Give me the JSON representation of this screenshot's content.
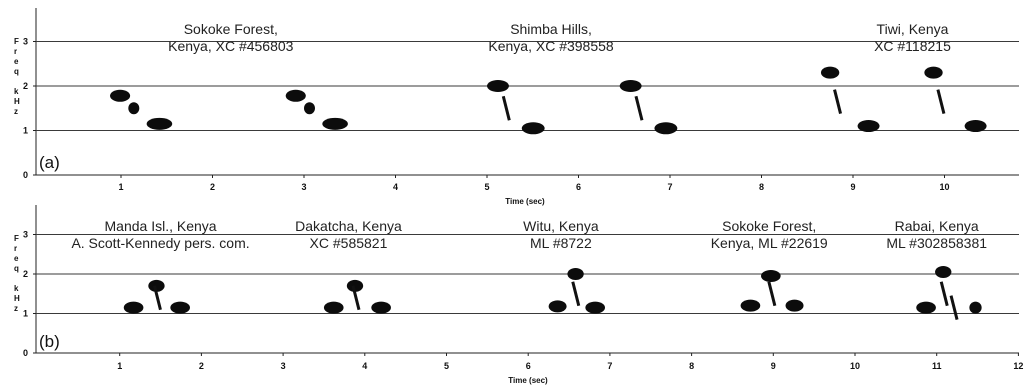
{
  "chart_data": [
    {
      "type": "spectrogram",
      "panel_label": "(a)",
      "xlabel": "Time (sec)",
      "ylabel_letters": [
        "F",
        "r",
        "e",
        "q",
        "",
        "k",
        "H",
        "z"
      ],
      "xlim": [
        0.3,
        11.0
      ],
      "ylim": [
        0,
        3.6
      ],
      "x_ticks": [
        "1",
        "2",
        "3",
        "4",
        "5",
        "6",
        "7",
        "8",
        "9",
        "10"
      ],
      "y_ticks": [
        "0",
        "1",
        "2",
        "3"
      ],
      "grid_y": [
        1,
        2,
        3
      ],
      "recordings": [
        {
          "label_lines": [
            "Sokoke Forest,",
            "Kenya, XC #456803"
          ],
          "label_center_x": 2.2,
          "notes": [
            {
              "t": 0.88,
              "f": 1.78,
              "d": 0.22
            },
            {
              "t": 1.08,
              "f": 1.5,
              "d": 0.12
            },
            {
              "t": 1.28,
              "f": 1.15,
              "d": 0.28
            },
            {
              "t": 2.8,
              "f": 1.78,
              "d": 0.22
            },
            {
              "t": 3.0,
              "f": 1.5,
              "d": 0.12
            },
            {
              "t": 3.2,
              "f": 1.15,
              "d": 0.28
            }
          ]
        },
        {
          "label_lines": [
            "Shimba Hills,",
            "Kenya, XC #398558"
          ],
          "label_center_x": 5.7,
          "notes": [
            {
              "t": 5.0,
              "f": 2.0,
              "d": 0.24
            },
            {
              "t": 5.2,
              "f": 1.5,
              "d": 0.1
            },
            {
              "t": 5.38,
              "f": 1.05,
              "d": 0.25
            },
            {
              "t": 6.45,
              "f": 2.0,
              "d": 0.24
            },
            {
              "t": 6.65,
              "f": 1.5,
              "d": 0.1
            },
            {
              "t": 6.83,
              "f": 1.05,
              "d": 0.25
            }
          ]
        },
        {
          "label_lines": [
            "Tiwi, Kenya",
            "XC #118215"
          ],
          "label_center_x": 9.65,
          "notes": [
            {
              "t": 8.65,
              "f": 2.3,
              "d": 0.2
            },
            {
              "t": 8.82,
              "f": 1.65,
              "d": 0.08
            },
            {
              "t": 9.05,
              "f": 1.1,
              "d": 0.24
            },
            {
              "t": 9.78,
              "f": 2.3,
              "d": 0.2
            },
            {
              "t": 9.95,
              "f": 1.65,
              "d": 0.08
            },
            {
              "t": 10.22,
              "f": 1.1,
              "d": 0.24
            }
          ]
        }
      ]
    },
    {
      "type": "spectrogram",
      "panel_label": "(b)",
      "xlabel": "Time (sec)",
      "ylabel_letters": [
        "F",
        "r",
        "e",
        "q",
        "",
        "k",
        "H",
        "z"
      ],
      "xlim": [
        0.05,
        12.05
      ],
      "ylim": [
        0,
        3.6
      ],
      "x_ticks": [
        "1",
        "2",
        "3",
        "4",
        "5",
        "6",
        "7",
        "8",
        "9",
        "10",
        "11",
        "12"
      ],
      "y_ticks": [
        "0",
        "1",
        "2",
        "3"
      ],
      "grid_y": [
        1,
        2,
        3
      ],
      "recordings": [
        {
          "label_lines": [
            "Manda Isl., Kenya",
            "A. Scott-Kennedy pers. com."
          ],
          "label_center_x": 1.5,
          "notes": [
            {
              "t": 1.05,
              "f": 1.15,
              "d": 0.24
            },
            {
              "t": 1.35,
              "f": 1.7,
              "d": 0.2
            },
            {
              "t": 1.45,
              "f": 1.4,
              "d": 0.08
            },
            {
              "t": 1.62,
              "f": 1.15,
              "d": 0.24
            }
          ]
        },
        {
          "label_lines": [
            "Dakatcha, Kenya",
            "XC #585821"
          ],
          "label_center_x": 3.8,
          "notes": [
            {
              "t": 3.5,
              "f": 1.15,
              "d": 0.24
            },
            {
              "t": 3.78,
              "f": 1.7,
              "d": 0.2
            },
            {
              "t": 3.88,
              "f": 1.4,
              "d": 0.08
            },
            {
              "t": 4.08,
              "f": 1.15,
              "d": 0.24
            }
          ]
        },
        {
          "label_lines": [
            "Witu, Kenya",
            "ML #8722"
          ],
          "label_center_x": 6.4,
          "notes": [
            {
              "t": 6.25,
              "f": 1.18,
              "d": 0.22
            },
            {
              "t": 6.48,
              "f": 2.0,
              "d": 0.2
            },
            {
              "t": 6.57,
              "f": 1.5,
              "d": 0.08
            },
            {
              "t": 6.7,
              "f": 1.15,
              "d": 0.24
            }
          ]
        },
        {
          "label_lines": [
            "Sokoke Forest,",
            "Kenya, ML #22619"
          ],
          "label_center_x": 8.95,
          "notes": [
            {
              "t": 8.6,
              "f": 1.2,
              "d": 0.24
            },
            {
              "t": 8.85,
              "f": 1.95,
              "d": 0.24
            },
            {
              "t": 8.97,
              "f": 1.5,
              "d": 0.08
            },
            {
              "t": 9.15,
              "f": 1.2,
              "d": 0.22
            }
          ]
        },
        {
          "label_lines": [
            "Rabai, Kenya",
            "ML #302858381"
          ],
          "label_center_x": 11.0,
          "notes": [
            {
              "t": 10.75,
              "f": 1.15,
              "d": 0.24
            },
            {
              "t": 10.98,
              "f": 2.05,
              "d": 0.2
            },
            {
              "t": 11.08,
              "f": 1.5,
              "d": 0.08
            },
            {
              "t": 11.2,
              "f": 1.15,
              "d": 0.08
            },
            {
              "t": 11.4,
              "f": 1.15,
              "d": 0.15
            }
          ]
        }
      ]
    }
  ]
}
